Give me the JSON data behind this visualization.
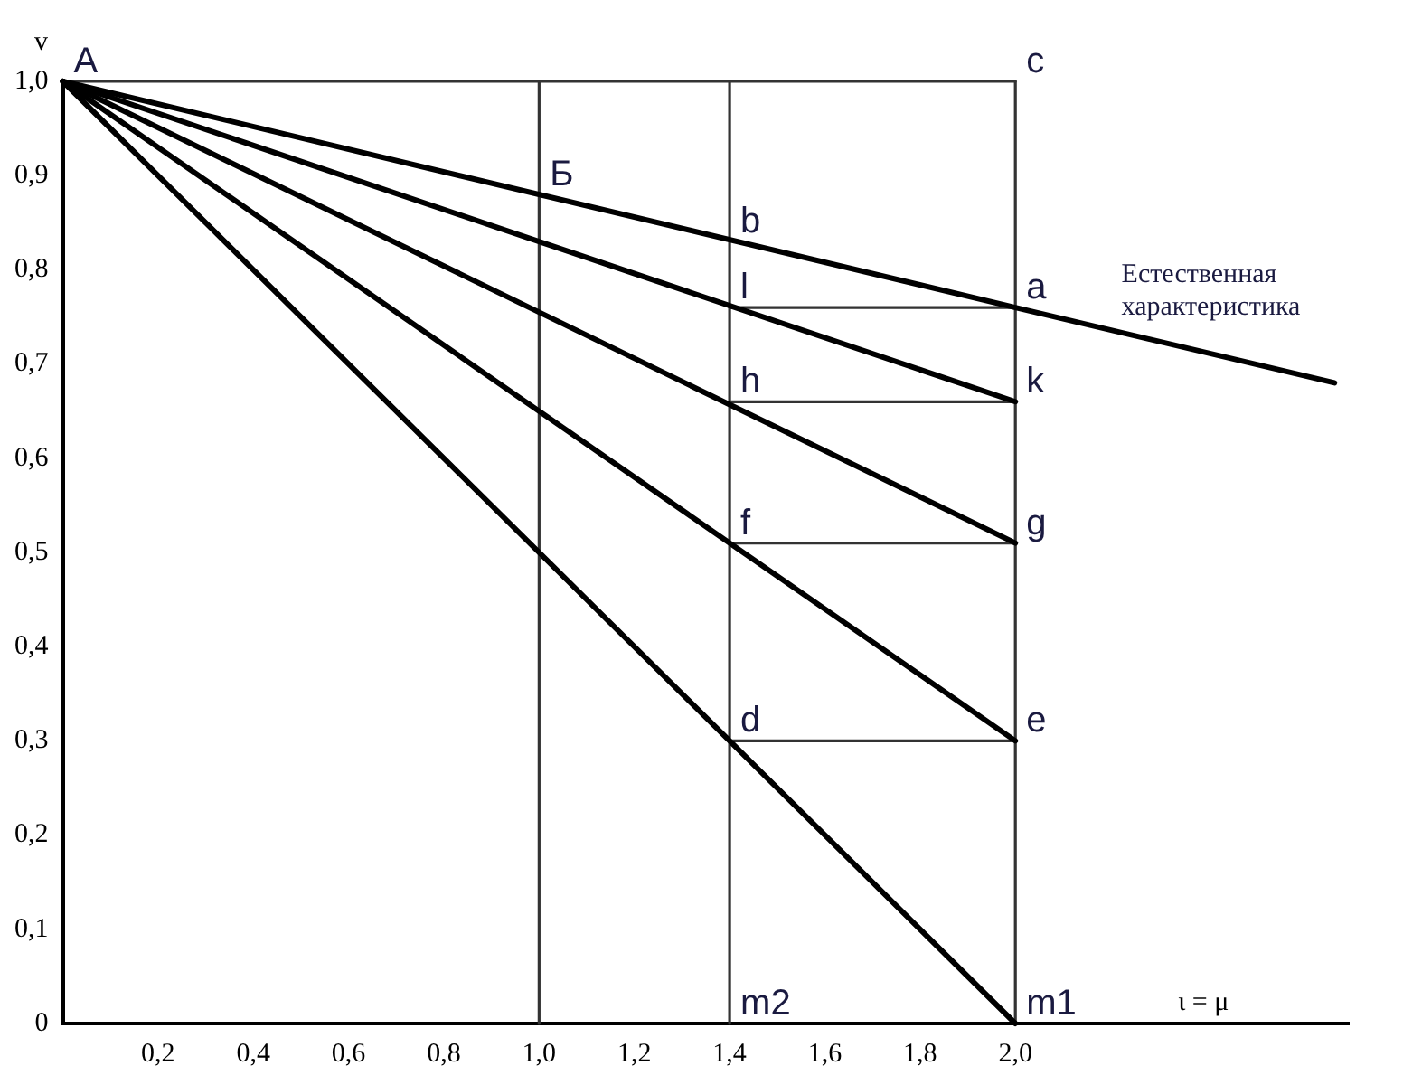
{
  "chart_data": {
    "type": "line",
    "ylabel": "v",
    "xlabel": "ι = μ",
    "xlim": [
      0,
      2.7
    ],
    "xticks": [
      {
        "value": 0.2,
        "label": "0,2"
      },
      {
        "value": 0.4,
        "label": "0,4"
      },
      {
        "value": 0.6,
        "label": "0,6"
      },
      {
        "value": 0.8,
        "label": "0,8"
      },
      {
        "value": 1.0,
        "label": "1,0"
      },
      {
        "value": 1.2,
        "label": "1,2"
      },
      {
        "value": 1.4,
        "label": "1,4"
      },
      {
        "value": 1.6,
        "label": "1,6"
      },
      {
        "value": 1.8,
        "label": "1,8"
      },
      {
        "value": 2.0,
        "label": "2,0"
      }
    ],
    "ylim": [
      0,
      1.0
    ],
    "yticks": [
      0,
      {
        "value": 0.1,
        "label": "0,1"
      },
      {
        "value": 0.2,
        "label": "0,2"
      },
      {
        "value": 0.3,
        "label": "0,3"
      },
      {
        "value": 0.4,
        "label": "0,4"
      },
      {
        "value": 0.5,
        "label": "0,5"
      },
      {
        "value": 0.6,
        "label": "0,6"
      },
      {
        "value": 0.7,
        "label": "0,7"
      },
      {
        "value": 0.8,
        "label": "0,8"
      },
      {
        "value": 0.9,
        "label": "0,9"
      },
      {
        "value": 1.0,
        "label": "1,0"
      }
    ],
    "grid": false,
    "legend": false,
    "marker": "none",
    "line_style": "solid",
    "series": [
      {
        "color": "#000000",
        "x": [
          0,
          2.0,
          2.67
        ],
        "values": [
          1.0,
          0.76,
          0.68
        ]
      },
      {
        "color": "#000000",
        "x": [
          0,
          2.0
        ],
        "values": [
          1.0,
          0.66
        ]
      },
      {
        "color": "#000000",
        "x": [
          0,
          2.0
        ],
        "values": [
          1.0,
          0.51
        ]
      },
      {
        "color": "#000000",
        "x": [
          0,
          2.0
        ],
        "values": [
          1.0,
          0.3
        ]
      },
      {
        "color": "#000000",
        "x": [
          0,
          2.0
        ],
        "values": [
          1.0,
          0
        ]
      },
      {
        "color": "#333333",
        "x": [
          0,
          2.0
        ],
        "values": [
          1.0,
          1.0
        ]
      },
      {
        "color": "#333333",
        "x": [
          1.0,
          1.0
        ],
        "values": [
          0,
          1.0
        ]
      },
      {
        "color": "#333333",
        "x": [
          1.4,
          1.4
        ],
        "values": [
          0,
          1.0
        ]
      },
      {
        "color": "#333333",
        "x": [
          2.0,
          2.0
        ],
        "values": [
          0,
          1.0
        ]
      },
      {
        "color": "#333333",
        "x": [
          1.4,
          2.0
        ],
        "values": [
          0.76,
          0.76
        ]
      },
      {
        "color": "#333333",
        "x": [
          1.4,
          2.0
        ],
        "values": [
          0.66,
          0.66
        ]
      },
      {
        "color": "#333333",
        "x": [
          1.4,
          2.0
        ],
        "values": [
          0.51,
          0.51
        ]
      },
      {
        "color": "#333333",
        "x": [
          1.4,
          2.0
        ],
        "values": [
          0.3,
          0.3
        ]
      }
    ],
    "annotations": [
      {
        "text": "A",
        "x": 0,
        "y": 1.0
      },
      {
        "text": "c",
        "x": 2.0,
        "y": 1.0
      },
      {
        "text": "Б",
        "x": 1.0,
        "y": 0.88
      },
      {
        "text": "b",
        "x": 1.4,
        "y": 0.83
      },
      {
        "text": "l",
        "x": 1.4,
        "y": 0.76
      },
      {
        "text": "a",
        "x": 2.0,
        "y": 0.76
      },
      {
        "text": "h",
        "x": 1.4,
        "y": 0.66
      },
      {
        "text": "k",
        "x": 2.0,
        "y": 0.66
      },
      {
        "text": "f",
        "x": 1.4,
        "y": 0.51
      },
      {
        "text": "g",
        "x": 2.0,
        "y": 0.51
      },
      {
        "text": "d",
        "x": 1.4,
        "y": 0.3
      },
      {
        "text": "e",
        "x": 2.0,
        "y": 0.3
      },
      {
        "text": "m2",
        "x": 1.4,
        "y": 0
      },
      {
        "text": "m1",
        "x": 2.0,
        "y": 0
      },
      {
        "text": "Естественная характеристика",
        "x": 2.2,
        "y": 0.745
      }
    ]
  }
}
